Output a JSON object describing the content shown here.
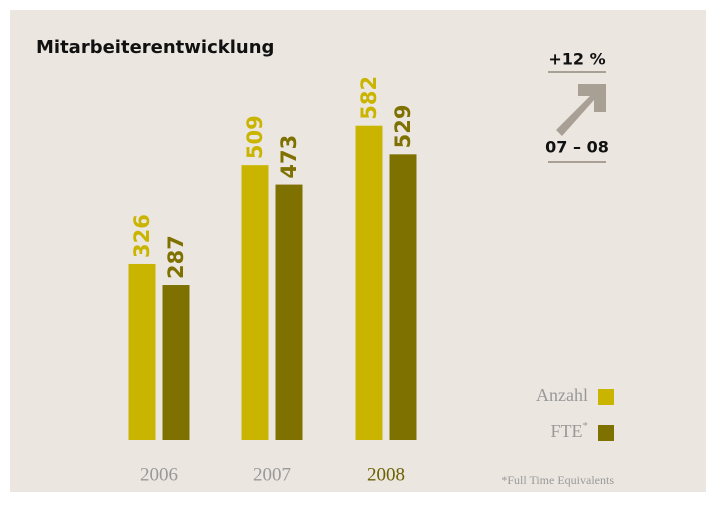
{
  "chart_data": {
    "type": "bar",
    "title": "Mitarbeiterentwicklung",
    "categories": [
      "2006",
      "2007",
      "2008"
    ],
    "series": [
      {
        "name": "Anzahl",
        "color": "#c9b500",
        "values": [
          326,
          509,
          582
        ]
      },
      {
        "name": "FTE",
        "color": "#7f7100",
        "values": [
          287,
          473,
          529
        ]
      }
    ],
    "ylim": [
      0,
      600
    ],
    "legend_position": "lower right",
    "footnote_marker": "*",
    "footnote": "*Full Time Equivalents",
    "annotation": {
      "change": "+12 %",
      "period": "07 – 08"
    }
  }
}
